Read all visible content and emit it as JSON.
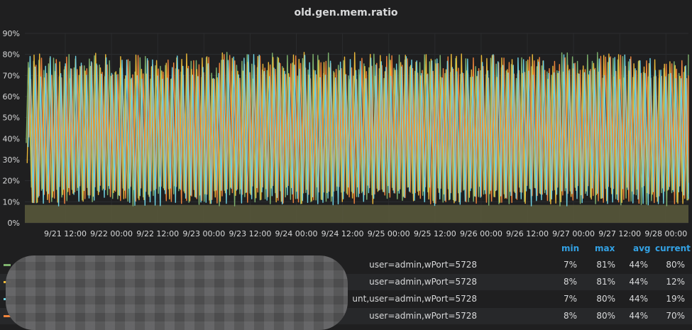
{
  "panel": {
    "title": "old.gen.mem.ratio"
  },
  "chart_data": {
    "type": "line",
    "title": "old.gen.mem.ratio",
    "xlabel": "",
    "ylabel": "",
    "ylim": [
      0,
      90
    ],
    "y_ticks": [
      "0%",
      "10%",
      "20%",
      "30%",
      "40%",
      "50%",
      "60%",
      "70%",
      "80%",
      "90%"
    ],
    "x_ticks": [
      "9/21 12:00",
      "9/22 00:00",
      "9/22 12:00",
      "9/23 00:00",
      "9/23 12:00",
      "9/24 00:00",
      "9/24 12:00",
      "9/25 00:00",
      "9/25 12:00",
      "9/26 00:00",
      "9/26 12:00",
      "9/27 00:00",
      "9/27 12:00",
      "9/28 00:00"
    ],
    "grid": true,
    "legend_placement": "bottom",
    "series": [
      {
        "name": "",
        "color": "#7eb26d",
        "min": 7,
        "max": 81,
        "avg": 44,
        "current": 80,
        "pattern": "oscillating"
      },
      {
        "name": "",
        "color": "#eab839",
        "min": 8,
        "max": 81,
        "avg": 44,
        "current": 12,
        "pattern": "oscillating"
      },
      {
        "name": "",
        "color": "#6ed0e0",
        "min": 7,
        "max": 80,
        "avg": 44,
        "current": 19,
        "pattern": "oscillating"
      },
      {
        "name": "",
        "color": "#ef843c",
        "min": 8,
        "max": 80,
        "avg": 44,
        "current": 70,
        "pattern": "oscillating"
      }
    ]
  },
  "legend": {
    "headers": {
      "min": "min",
      "max": "max",
      "avg": "avg",
      "current": "current"
    },
    "rows": [
      {
        "label": "user=admin,wPort=5728",
        "color": "#7eb26d",
        "min": "7%",
        "max": "81%",
        "avg": "44%",
        "current": "80%"
      },
      {
        "label": "user=admin,wPort=5728",
        "color": "#eab839",
        "min": "8%",
        "max": "81%",
        "avg": "44%",
        "current": "12%"
      },
      {
        "label": "unt,user=admin,wPort=5728",
        "color": "#6ed0e0",
        "min": "7%",
        "max": "80%",
        "avg": "44%",
        "current": "19%"
      },
      {
        "label": "user=admin,wPort=5728",
        "color": "#ef843c",
        "min": "8%",
        "max": "80%",
        "avg": "44%",
        "current": "70%"
      }
    ]
  }
}
